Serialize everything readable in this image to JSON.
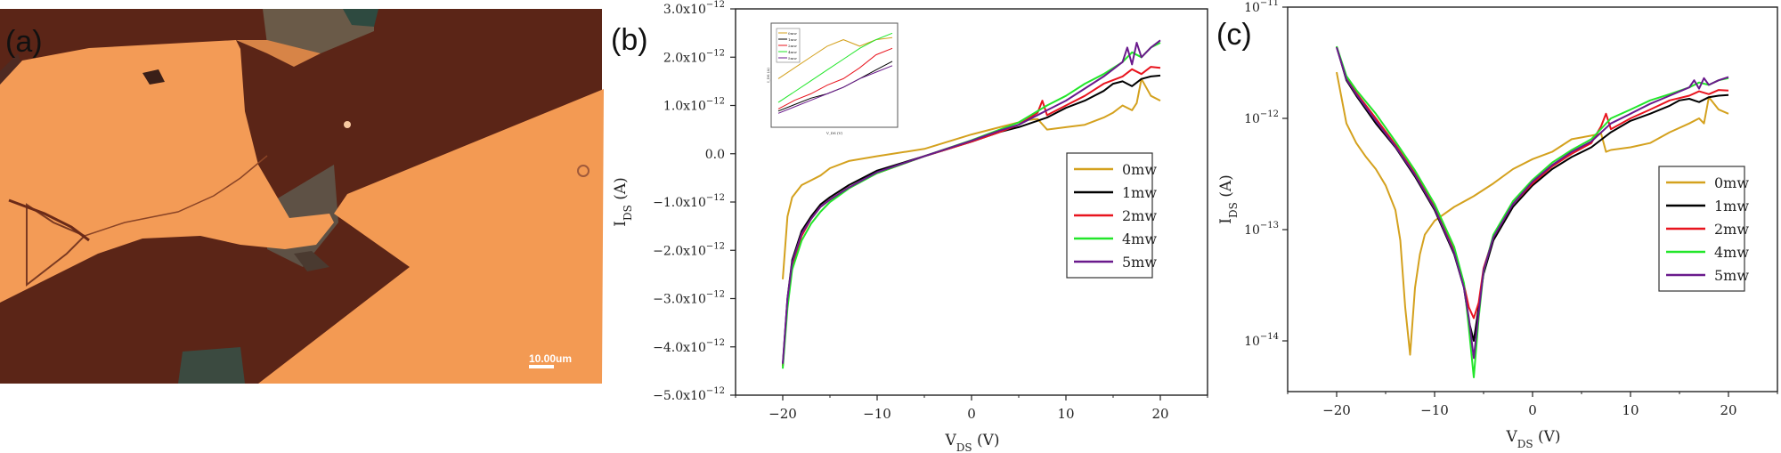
{
  "panels": {
    "a": {
      "label": "(a)",
      "scale_bar_text": "10.00um"
    },
    "b": {
      "label": "(b)"
    },
    "c": {
      "label": "(c)"
    }
  },
  "colors": {
    "0mw": "#d4a11e",
    "1mw": "#000000",
    "2mw": "#e8141e",
    "4mw": "#22e62a",
    "5mw": "#6a1a8c",
    "photo_substrate": "#5a2418",
    "photo_flake": "#f19a55"
  },
  "chart_data": [
    {
      "id": "b",
      "type": "line",
      "title": "",
      "xlabel": "V_DS (V)",
      "ylabel": "I_DS (A)",
      "xlim": [
        -25,
        25
      ],
      "ylim": [
        -5e-12,
        3e-12
      ],
      "xticks": [
        -20,
        -10,
        0,
        10,
        20
      ],
      "xtick_labels": [
        "−20",
        "−10",
        "0",
        "10",
        "20"
      ],
      "yticks": [
        -5e-12,
        -4e-12,
        -3e-12,
        -2e-12,
        -1e-12,
        0,
        1e-12,
        2e-12,
        3e-12
      ],
      "ytick_labels": [
        "−5.0x10⁻¹²",
        "−4.0x10⁻¹²",
        "−3.0x10⁻¹²",
        "−2.0x10⁻¹²",
        "−1.0x10⁻¹²",
        "0.0",
        "1.0x10⁻¹²",
        "2.0x10⁻¹²",
        "3.0x10⁻¹²"
      ],
      "grid": false,
      "legend_position": "bottom-right",
      "series": [
        {
          "name": "0mw",
          "x": [
            -20,
            -19.5,
            -19,
            -18,
            -17,
            -16,
            -15,
            -13,
            -10,
            -5,
            0,
            3,
            5,
            6,
            7,
            8,
            10,
            12,
            14,
            15,
            16,
            17,
            17.5,
            18,
            19,
            20
          ],
          "y": [
            -2.6e-12,
            -1.3e-12,
            -9e-13,
            -6.5e-13,
            -5.5e-13,
            -4.5e-13,
            -3e-13,
            -1.5e-13,
            -5e-14,
            1e-13,
            4e-13,
            5.5e-13,
            6.5e-13,
            7e-13,
            7.2e-13,
            5e-13,
            5.5e-13,
            6e-13,
            7.5e-13,
            8.5e-13,
            1e-12,
            9e-13,
            1.05e-12,
            1.55e-12,
            1.2e-12,
            1.1e-12
          ]
        },
        {
          "name": "1mw",
          "x": [
            -20,
            -19.5,
            -19,
            -18,
            -17,
            -16,
            -15,
            -13,
            -10,
            -5,
            0,
            3,
            5,
            8,
            10,
            12,
            14,
            15,
            16,
            17,
            18,
            19,
            20
          ],
          "y": [
            -4.4e-12,
            -3e-12,
            -2.2e-12,
            -1.6e-12,
            -1.3e-12,
            -1.05e-12,
            -9e-13,
            -6.5e-13,
            -3.5e-13,
            -5e-14,
            2.5e-13,
            4.5e-13,
            5.5e-13,
            7.5e-13,
            9.5e-13,
            1.1e-12,
            1.3e-12,
            1.45e-12,
            1.5e-12,
            1.4e-12,
            1.55e-12,
            1.6e-12,
            1.62e-12
          ]
        },
        {
          "name": "2mw",
          "x": [
            -20,
            -19.5,
            -19,
            -18,
            -17,
            -16,
            -15,
            -13,
            -10,
            -5,
            0,
            3,
            5,
            7,
            7.5,
            8,
            10,
            12,
            14,
            16,
            17,
            18,
            19,
            20
          ],
          "y": [
            -4.4e-12,
            -3.1e-12,
            -2.3e-12,
            -1.7e-12,
            -1.35e-12,
            -1.1e-12,
            -9.5e-13,
            -7e-13,
            -4e-13,
            -5e-14,
            2.5e-13,
            4.5e-13,
            6e-13,
            8.5e-13,
            1.1e-12,
            8e-13,
            1e-12,
            1.2e-12,
            1.45e-12,
            1.6e-12,
            1.75e-12,
            1.65e-12,
            1.8e-12,
            1.78e-12
          ]
        },
        {
          "name": "4mw",
          "x": [
            -20,
            -19.5,
            -19,
            -18,
            -17,
            -16,
            -15,
            -13,
            -10,
            -5,
            0,
            3,
            5,
            8,
            10,
            12,
            14,
            16,
            17,
            18,
            19,
            20
          ],
          "y": [
            -4.45e-12,
            -3.2e-12,
            -2.4e-12,
            -1.8e-12,
            -1.45e-12,
            -1.2e-12,
            -1e-12,
            -7.2e-13,
            -4e-13,
            -5e-14,
            2.8e-13,
            5e-13,
            6.5e-13,
            1e-12,
            1.2e-12,
            1.45e-12,
            1.65e-12,
            1.9e-12,
            2.1e-12,
            2e-12,
            2.2e-12,
            2.3e-12
          ]
        },
        {
          "name": "5mw",
          "x": [
            -20,
            -19.5,
            -19,
            -18,
            -17,
            -16,
            -15,
            -13,
            -10,
            -5,
            0,
            3,
            5,
            8,
            10,
            12,
            14,
            16,
            16.5,
            17,
            17.5,
            18,
            19,
            20
          ],
          "y": [
            -4.35e-12,
            -3e-12,
            -2.25e-12,
            -1.65e-12,
            -1.35e-12,
            -1.1e-12,
            -9.5e-13,
            -7e-13,
            -3.8e-13,
            -5e-14,
            2.7e-13,
            4.8e-13,
            6e-13,
            9e-13,
            1.1e-12,
            1.35e-12,
            1.6e-12,
            1.9e-12,
            2.2e-12,
            1.85e-12,
            2.3e-12,
            2e-12,
            2.2e-12,
            2.35e-12
          ]
        }
      ],
      "inset": {
        "type": "line",
        "xlabel": "V_DS (V)",
        "ylabel": "I_DS (A)",
        "legend": [
          "0mw",
          "1mw",
          "2mw",
          "4mw",
          "5mw"
        ],
        "series": [
          {
            "name": "0mw",
            "x": [
              0,
              1,
              2,
              3,
              4,
              5,
              6,
              7
            ],
            "y": [
              1.3,
              1.55,
              1.8,
              2.05,
              2.2,
              2.05,
              2.2,
              2.25
            ]
          },
          {
            "name": "1mw",
            "x": [
              0,
              1,
              2,
              3,
              4,
              5,
              6,
              7
            ],
            "y": [
              0.55,
              0.7,
              0.85,
              0.95,
              1.1,
              1.3,
              1.5,
              1.7
            ]
          },
          {
            "name": "2mw",
            "x": [
              0,
              1,
              2,
              3,
              4,
              5,
              6,
              7
            ],
            "y": [
              0.6,
              0.8,
              0.95,
              1.15,
              1.3,
              1.55,
              1.85,
              2.0
            ]
          },
          {
            "name": "4mw",
            "x": [
              0,
              1,
              2,
              3,
              4,
              5,
              6,
              7
            ],
            "y": [
              0.75,
              1.0,
              1.25,
              1.5,
              1.75,
              2.0,
              2.2,
              2.35
            ]
          },
          {
            "name": "5mw",
            "x": [
              0,
              1,
              2,
              3,
              4,
              5,
              6,
              7
            ],
            "y": [
              0.5,
              0.65,
              0.8,
              0.95,
              1.1,
              1.3,
              1.45,
              1.6
            ]
          }
        ],
        "ylim": [
          0.3,
          2.5
        ],
        "xlim": [
          0,
          7
        ]
      }
    },
    {
      "id": "c",
      "type": "line",
      "title": "",
      "xlabel": "V_DS (V)",
      "ylabel": "I_DS (A)",
      "yscale": "log",
      "xlim": [
        -25,
        25
      ],
      "ylim": [
        3.5e-15,
        1e-11
      ],
      "xticks": [
        -20,
        -10,
        0,
        10,
        20
      ],
      "xtick_labels": [
        "−20",
        "−10",
        "0",
        "10",
        "20"
      ],
      "ytick_exponents": [
        -14,
        -13,
        -12,
        -11
      ],
      "ytick_base": "10",
      "grid": false,
      "legend_position": "right",
      "series": [
        {
          "name": "0mw",
          "x": [
            -20,
            -19,
            -18,
            -17,
            -16,
            -15,
            -14,
            -13.5,
            -13,
            -12.5,
            -12,
            -11.5,
            -11,
            -10,
            -8,
            -6,
            -4,
            -2,
            0,
            2,
            4,
            6,
            7,
            7.5,
            8,
            10,
            12,
            14,
            16,
            17,
            17.5,
            18,
            19,
            20
          ],
          "y": [
            2.6e-12,
            9e-13,
            6e-13,
            4.5e-13,
            3.5e-13,
            2.5e-13,
            1.5e-13,
            8e-14,
            2e-14,
            7.5e-15,
            3e-14,
            6e-14,
            9e-14,
            1.2e-13,
            1.6e-13,
            2e-13,
            2.6e-13,
            3.5e-13,
            4.3e-13,
            5e-13,
            6.5e-13,
            7e-13,
            7.3e-13,
            5e-13,
            5.2e-13,
            5.5e-13,
            6e-13,
            7.5e-13,
            9e-13,
            1e-12,
            9e-13,
            1.55e-12,
            1.2e-12,
            1.1e-12
          ]
        },
        {
          "name": "1mw",
          "x": [
            -20,
            -19,
            -18,
            -16,
            -14,
            -12,
            -10,
            -8,
            -7,
            -6.5,
            -6,
            -5.5,
            -5,
            -4,
            -2,
            0,
            2,
            4,
            6,
            8,
            10,
            12,
            14,
            15,
            16,
            17,
            18,
            19,
            20
          ],
          "y": [
            4.4e-12,
            2.2e-12,
            1.6e-12,
            9e-13,
            5.5e-13,
            3e-13,
            1.5e-13,
            6e-14,
            3e-14,
            1.5e-14,
            1e-14,
            2e-14,
            4e-14,
            8e-14,
            1.6e-13,
            2.5e-13,
            3.5e-13,
            4.5e-13,
            5.5e-13,
            7.5e-13,
            9.5e-13,
            1.1e-12,
            1.3e-12,
            1.45e-12,
            1.5e-12,
            1.4e-12,
            1.55e-12,
            1.6e-12,
            1.62e-12
          ]
        },
        {
          "name": "2mw",
          "x": [
            -20,
            -19,
            -18,
            -16,
            -14,
            -12,
            -10,
            -8,
            -7,
            -6.5,
            -6,
            -5.5,
            -5,
            -4,
            -2,
            0,
            2,
            4,
            6,
            7,
            7.5,
            8,
            10,
            12,
            14,
            16,
            17,
            18,
            19,
            20
          ],
          "y": [
            4.4e-12,
            2.3e-12,
            1.7e-12,
            1e-12,
            5.8e-13,
            3.2e-13,
            1.6e-13,
            6.5e-14,
            3.2e-14,
            2e-14,
            1.6e-14,
            2.2e-14,
            4.5e-14,
            8.5e-14,
            1.7e-13,
            2.6e-13,
            3.7e-13,
            4.8e-13,
            6e-13,
            8.5e-13,
            1.1e-12,
            8e-13,
            1e-12,
            1.2e-12,
            1.45e-12,
            1.6e-12,
            1.75e-12,
            1.65e-12,
            1.8e-12,
            1.78e-12
          ]
        },
        {
          "name": "4mw",
          "x": [
            -20,
            -19,
            -18,
            -16,
            -14,
            -12,
            -10,
            -8,
            -7,
            -6.5,
            -6,
            -5.5,
            -5,
            -4,
            -2,
            0,
            2,
            4,
            6,
            8,
            10,
            12,
            14,
            16,
            17,
            18,
            19,
            20
          ],
          "y": [
            4.45e-12,
            2.4e-12,
            1.8e-12,
            1.1e-12,
            6.2e-13,
            3.4e-13,
            1.7e-13,
            7e-14,
            3.3e-14,
            1.3e-14,
            4.7e-15,
            1.6e-14,
            4.2e-14,
            9e-14,
            1.8e-13,
            2.8e-13,
            4e-13,
            5.2e-13,
            6.5e-13,
            1e-12,
            1.2e-12,
            1.45e-12,
            1.65e-12,
            1.9e-12,
            2.1e-12,
            2e-12,
            2.2e-12,
            2.3e-12
          ]
        },
        {
          "name": "5mw",
          "x": [
            -20,
            -19,
            -18,
            -16,
            -14,
            -12,
            -10,
            -8,
            -7,
            -6.5,
            -6,
            -5.5,
            -5,
            -4,
            -2,
            0,
            2,
            4,
            6,
            8,
            10,
            12,
            14,
            16,
            16.5,
            17,
            17.5,
            18,
            19,
            20
          ],
          "y": [
            4.35e-12,
            2.25e-12,
            1.65e-12,
            9.5e-13,
            5.6e-13,
            3.1e-13,
            1.55e-13,
            6.2e-14,
            3e-14,
            1.6e-14,
            7e-15,
            1.8e-14,
            4.3e-14,
            8.5e-14,
            1.7e-13,
            2.7e-13,
            3.8e-13,
            5e-13,
            6.2e-13,
            9e-13,
            1.1e-12,
            1.35e-12,
            1.6e-12,
            1.9e-12,
            2.2e-12,
            1.85e-12,
            2.3e-12,
            2e-12,
            2.2e-12,
            2.35e-12
          ]
        }
      ]
    }
  ]
}
